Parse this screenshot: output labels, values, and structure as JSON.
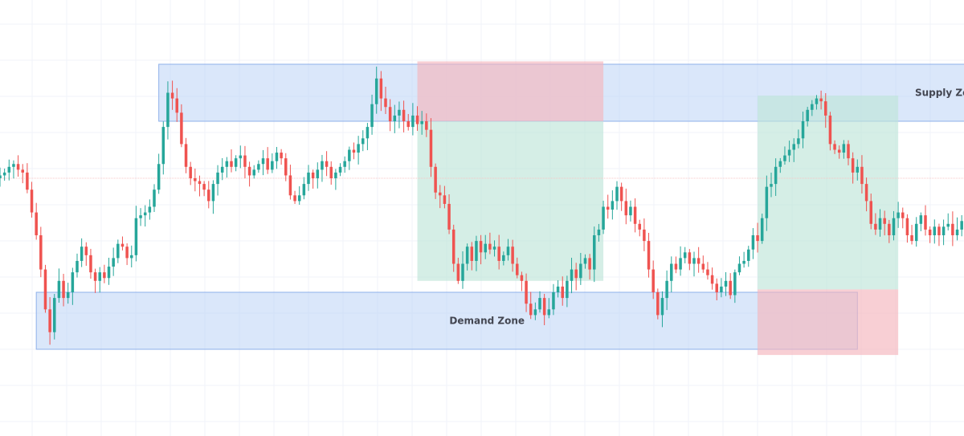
{
  "chart_data": {
    "type": "candlestick",
    "title": "",
    "grid": true,
    "colors": {
      "up": "#26a69a",
      "down": "#ef5350",
      "zone_fill": "#bcd3f5",
      "zone_stroke": "#8fb0ea",
      "take_profit": "#bfe5d9",
      "stop_loss": "#f5b5bd",
      "grid": "#f0f3fa",
      "price_line": "#f7c7c7"
    },
    "zones": [
      {
        "name": "Supply Zone",
        "kind": "supply",
        "x_start": 35,
        "x_end": 218,
        "price_low": 0.8,
        "price_high": 1.0,
        "label_position": "right"
      },
      {
        "name": "Demand Zone",
        "kind": "demand",
        "x_start": 8,
        "x_end": 189,
        "price_low": 0.0,
        "price_high": 0.2,
        "label_position": "center"
      }
    ],
    "positions": [
      {
        "kind": "short",
        "x_start": 92,
        "x_end": 133,
        "entry": 0.8,
        "stop": 1.01,
        "target": 0.24
      },
      {
        "kind": "long",
        "x_start": 167,
        "x_end": 198,
        "entry": 0.21,
        "stop": -0.02,
        "target": 0.89
      }
    ],
    "current_price": 0.6,
    "close": [
      0.61,
      0.62,
      0.64,
      0.65,
      0.63,
      0.62,
      0.56,
      0.48,
      0.4,
      0.28,
      0.14,
      0.06,
      0.18,
      0.24,
      0.18,
      0.2,
      0.27,
      0.31,
      0.36,
      0.33,
      0.27,
      0.24,
      0.27,
      0.25,
      0.29,
      0.32,
      0.37,
      0.36,
      0.32,
      0.33,
      0.46,
      0.47,
      0.48,
      0.5,
      0.56,
      0.65,
      0.78,
      0.9,
      0.88,
      0.83,
      0.72,
      0.64,
      0.6,
      0.59,
      0.58,
      0.56,
      0.52,
      0.58,
      0.62,
      0.64,
      0.66,
      0.64,
      0.67,
      0.68,
      0.64,
      0.61,
      0.63,
      0.65,
      0.67,
      0.63,
      0.66,
      0.69,
      0.67,
      0.61,
      0.54,
      0.52,
      0.54,
      0.58,
      0.62,
      0.6,
      0.63,
      0.66,
      0.64,
      0.6,
      0.62,
      0.64,
      0.66,
      0.7,
      0.69,
      0.72,
      0.74,
      0.78,
      0.86,
      0.95,
      0.88,
      0.85,
      0.8,
      0.82,
      0.84,
      0.8,
      0.78,
      0.82,
      0.79,
      0.8,
      0.77,
      0.64,
      0.55,
      0.54,
      0.51,
      0.42,
      0.3,
      0.24,
      0.3,
      0.36,
      0.31,
      0.38,
      0.34,
      0.37,
      0.35,
      0.36,
      0.31,
      0.33,
      0.36,
      0.3,
      0.26,
      0.24,
      0.16,
      0.12,
      0.14,
      0.18,
      0.12,
      0.14,
      0.2,
      0.22,
      0.18,
      0.24,
      0.28,
      0.25,
      0.3,
      0.32,
      0.28,
      0.4,
      0.42,
      0.5,
      0.49,
      0.52,
      0.57,
      0.52,
      0.47,
      0.5,
      0.44,
      0.42,
      0.38,
      0.28,
      0.2,
      0.12,
      0.18,
      0.24,
      0.3,
      0.28,
      0.32,
      0.34,
      0.3,
      0.32,
      0.3,
      0.28,
      0.26,
      0.23,
      0.2,
      0.22,
      0.24,
      0.19,
      0.27,
      0.3,
      0.31,
      0.35,
      0.4,
      0.38,
      0.46,
      0.57,
      0.58,
      0.64,
      0.66,
      0.68,
      0.7,
      0.72,
      0.74,
      0.8,
      0.84,
      0.86,
      0.88,
      0.87,
      0.82,
      0.72,
      0.7,
      0.69,
      0.72,
      0.67,
      0.62,
      0.64,
      0.58,
      0.52,
      0.44,
      0.42,
      0.46,
      0.44,
      0.4,
      0.46,
      0.48,
      0.46,
      0.4,
      0.38,
      0.44,
      0.47,
      0.42,
      0.4,
      0.43,
      0.4,
      0.43,
      0.44,
      0.4,
      0.42,
      0.45
    ]
  }
}
